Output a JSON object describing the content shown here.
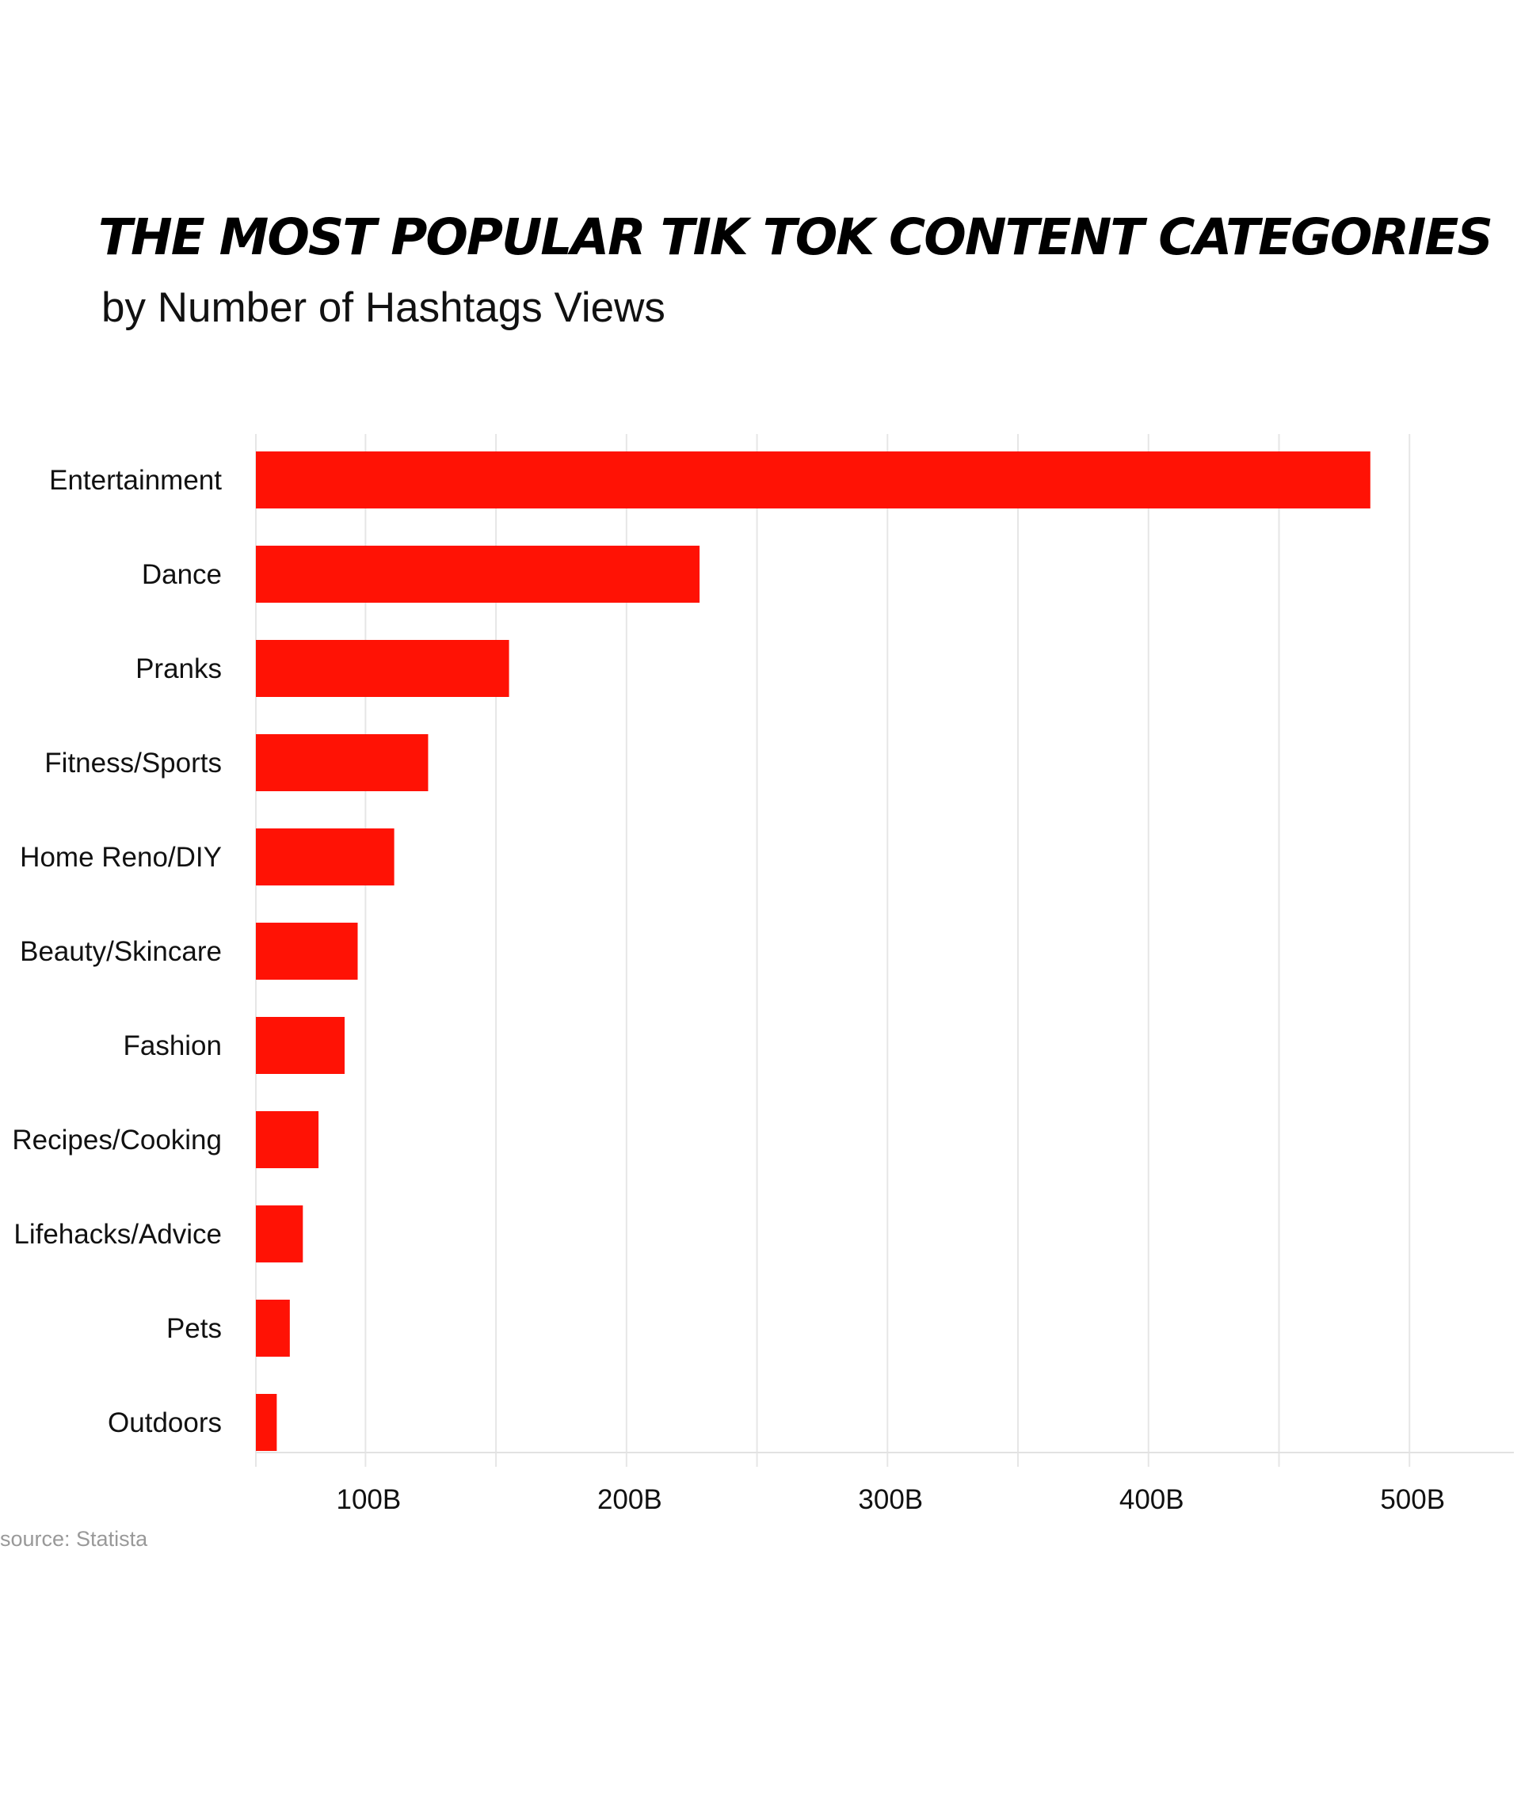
{
  "chart_data": {
    "type": "bar",
    "orientation": "horizontal",
    "title": "THE MOST POPULAR TIK TOK CONTENT CATEGORIES",
    "subtitle": "by Number of Hashtags Views",
    "categories": [
      "Entertainment",
      "Dance",
      "Pranks",
      "Fitness/Sports",
      "Home Reno/DIY",
      "Beauty/Skincare",
      "Fashion",
      "Recipes/Cooking",
      "Lifehacks/Advice",
      "Pets",
      "Outdoors"
    ],
    "values": [
      485,
      228,
      155,
      124,
      111,
      97,
      92,
      82,
      76,
      71,
      66
    ],
    "xlim": [
      58,
      540
    ],
    "x_ticks": [
      100,
      200,
      300,
      400,
      500
    ],
    "x_tick_labels": [
      "100B",
      "200B",
      "300B",
      "400B",
      "500B"
    ],
    "grid": true,
    "xlabel": "",
    "ylabel": "",
    "source": "source: Statista",
    "colors": {
      "bar": "#ff1205",
      "grid": "#e6e6e6",
      "axis": "#e2e2e2",
      "source_text": "#999999"
    }
  }
}
